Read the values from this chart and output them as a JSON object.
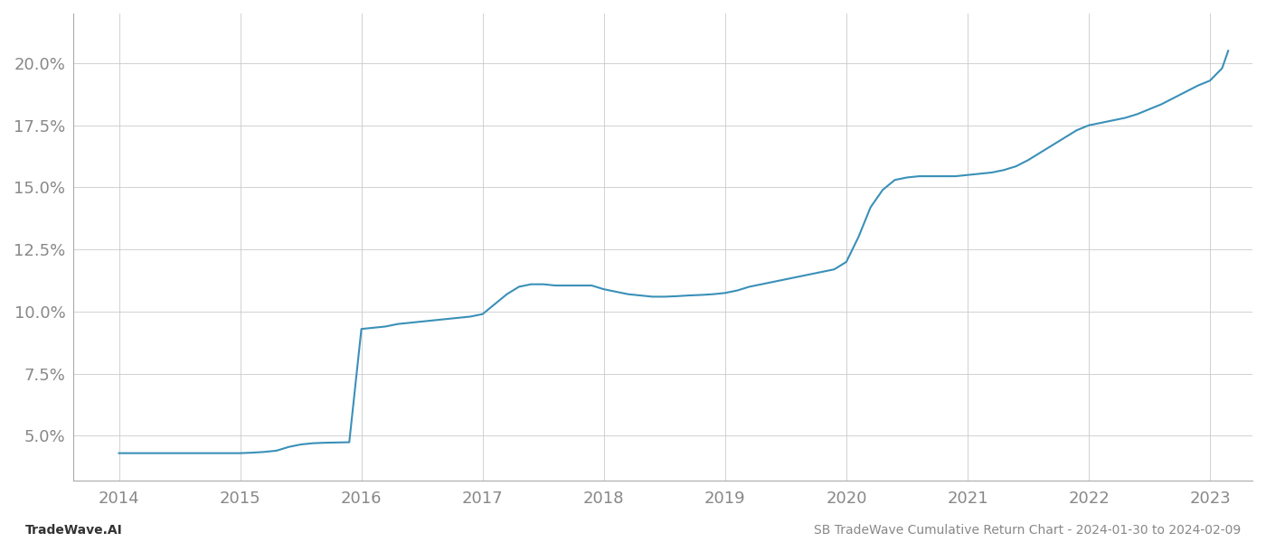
{
  "x_years": [
    2014.0,
    2014.1,
    2014.2,
    2014.3,
    2014.4,
    2014.5,
    2014.6,
    2014.7,
    2014.8,
    2014.9,
    2015.0,
    2015.1,
    2015.2,
    2015.3,
    2015.4,
    2015.5,
    2015.6,
    2015.7,
    2015.8,
    2015.9,
    2016.0,
    2016.1,
    2016.2,
    2016.3,
    2016.4,
    2016.5,
    2016.6,
    2016.7,
    2016.8,
    2016.9,
    2017.0,
    2017.1,
    2017.2,
    2017.3,
    2017.4,
    2017.5,
    2017.6,
    2017.7,
    2017.8,
    2017.9,
    2018.0,
    2018.1,
    2018.2,
    2018.3,
    2018.4,
    2018.5,
    2018.6,
    2018.7,
    2018.8,
    2018.9,
    2019.0,
    2019.1,
    2019.2,
    2019.3,
    2019.4,
    2019.5,
    2019.6,
    2019.7,
    2019.8,
    2019.9,
    2020.0,
    2020.1,
    2020.2,
    2020.3,
    2020.4,
    2020.5,
    2020.6,
    2020.7,
    2020.8,
    2020.9,
    2021.0,
    2021.1,
    2021.2,
    2021.3,
    2021.4,
    2021.5,
    2021.6,
    2021.7,
    2021.8,
    2021.9,
    2022.0,
    2022.1,
    2022.2,
    2022.3,
    2022.4,
    2022.5,
    2022.6,
    2022.7,
    2022.8,
    2022.9,
    2023.0,
    2023.1,
    2023.15
  ],
  "y_values": [
    4.3,
    4.3,
    4.3,
    4.3,
    4.3,
    4.3,
    4.3,
    4.3,
    4.3,
    4.3,
    4.3,
    4.32,
    4.35,
    4.4,
    4.55,
    4.65,
    4.7,
    4.72,
    4.73,
    4.74,
    9.3,
    9.35,
    9.4,
    9.5,
    9.55,
    9.6,
    9.65,
    9.7,
    9.75,
    9.8,
    9.9,
    10.3,
    10.7,
    11.0,
    11.1,
    11.1,
    11.05,
    11.05,
    11.05,
    11.05,
    10.9,
    10.8,
    10.7,
    10.65,
    10.6,
    10.6,
    10.62,
    10.65,
    10.67,
    10.7,
    10.75,
    10.85,
    11.0,
    11.1,
    11.2,
    11.3,
    11.4,
    11.5,
    11.6,
    11.7,
    12.0,
    13.0,
    14.2,
    14.9,
    15.3,
    15.4,
    15.45,
    15.45,
    15.45,
    15.45,
    15.5,
    15.55,
    15.6,
    15.7,
    15.85,
    16.1,
    16.4,
    16.7,
    17.0,
    17.3,
    17.5,
    17.6,
    17.7,
    17.8,
    17.95,
    18.15,
    18.35,
    18.6,
    18.85,
    19.1,
    19.3,
    19.8,
    20.5
  ],
  "line_color": "#3a90b8",
  "line_width": 1.5,
  "background_color": "#ffffff",
  "grid_color": "#cccccc",
  "footer_left": "TradeWave.AI",
  "footer_right": "SB TradeWave Cumulative Return Chart - 2024-01-30 to 2024-02-09",
  "xlim": [
    2013.62,
    2023.35
  ],
  "ylim": [
    3.2,
    22.0
  ],
  "yticks": [
    5.0,
    7.5,
    10.0,
    12.5,
    15.0,
    17.5,
    20.0
  ],
  "xticks": [
    2014,
    2015,
    2016,
    2017,
    2018,
    2019,
    2020,
    2021,
    2022,
    2023
  ],
  "tick_color": "#888888",
  "tick_fontsize": 13,
  "footer_fontsize": 10
}
